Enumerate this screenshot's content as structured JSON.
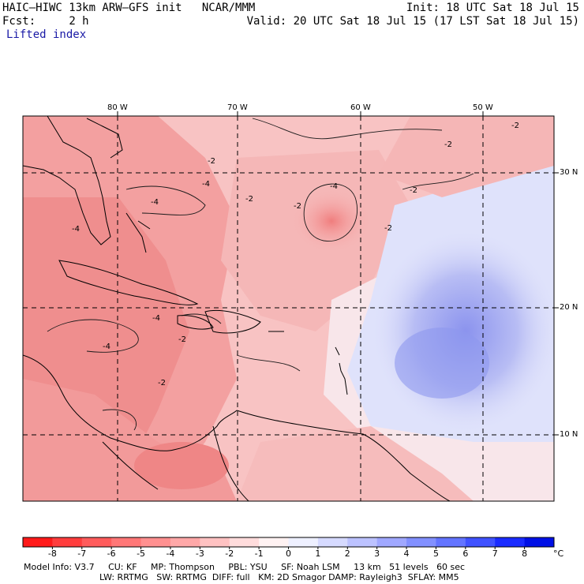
{
  "header": {
    "model": "HAIC–HIWC 13km ARW–GFS init",
    "org": "NCAR/MMM",
    "init": "Init: 18 UTC Sat 18 Jul 15",
    "fcst_label": "Fcst:",
    "fcst_value": "2 h",
    "valid": "Valid: 20 UTC Sat 18 Jul 15 (17 LST Sat 18 Jul 15)",
    "field": "Lifted index"
  },
  "map": {
    "lon_labels": [
      "80 W",
      "70 W",
      "60 W",
      "50 W"
    ],
    "lat_labels": [
      "30 N",
      "20 N",
      "10 N"
    ],
    "contour_labels": [
      "-2",
      "-4",
      "-2",
      "-4",
      "-2",
      "-2",
      "-4",
      "-2",
      "-2",
      "-2",
      "-4",
      "-4",
      "-2",
      "-4",
      "-2"
    ]
  },
  "colorbar": {
    "tick_labels": [
      "-8",
      "-7",
      "-6",
      "-5",
      "-4",
      "-3",
      "-2",
      "-1",
      "0",
      "1",
      "2",
      "3",
      "4",
      "5",
      "6",
      "7",
      "8"
    ],
    "unit": "°C",
    "colors": [
      "#ff1a1a",
      "#ff3d3d",
      "#ff5c5c",
      "#ff7777",
      "#ff9090",
      "#ffa8a8",
      "#ffc2c2",
      "#ffdcdc",
      "#fff2f2",
      "#eef0ff",
      "#d6daff",
      "#bcc2ff",
      "#a0a8ff",
      "#8290ff",
      "#6374ff",
      "#4052ff",
      "#1a2bff",
      "#0010e6"
    ]
  },
  "footer": {
    "line1": [
      "Model Info: V3.7",
      "CU: KF",
      "MP: Thompson",
      "PBL: YSU",
      "SF: Noah LSM",
      "13 km",
      "51 levels",
      "60 sec"
    ],
    "line2": [
      "LW: RRTMG",
      "SW: RRTMG",
      "DIFF: full",
      "KM: 2D Smagor",
      "DAMP: Rayleigh3",
      "SFLAY: MM5"
    ]
  }
}
